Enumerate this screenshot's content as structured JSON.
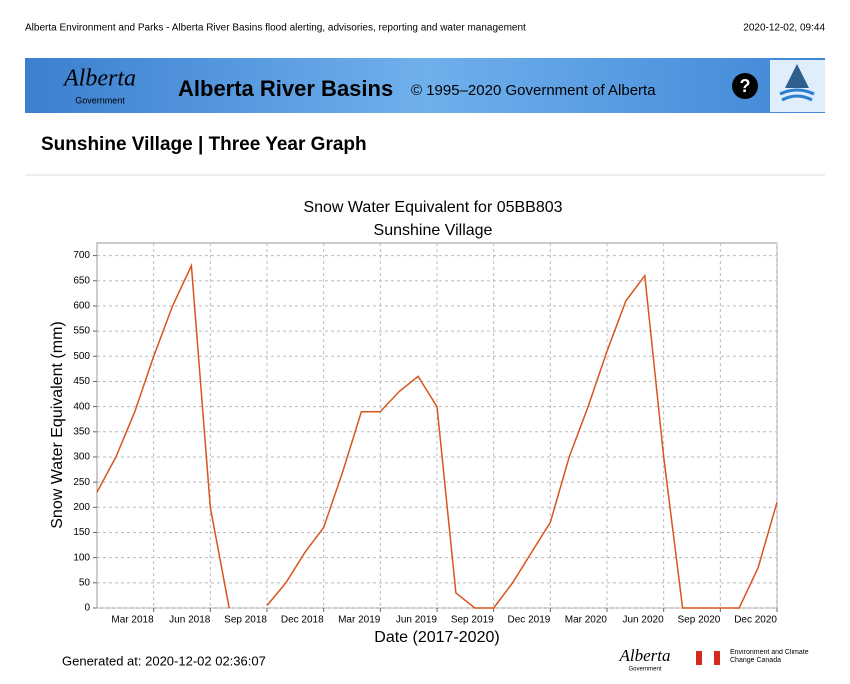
{
  "header": {
    "source": "Alberta Environment and Parks - Alberta River Basins flood alerting, advisories, reporting and water management",
    "timestamp": "2020-12-02, 09:44"
  },
  "banner": {
    "logo": "Alberta",
    "logo_sub": "Government",
    "title": "Alberta River Basins",
    "copyright": "© 1995–2020 Government of Alberta",
    "help": "?"
  },
  "page_title": "Sunshine Village | Three Year Graph",
  "chart_data": {
    "type": "line",
    "title": "Snow Water Equivalent for 05BB803",
    "subtitle": "Sunshine Village",
    "x_label": "Date (2017-2020)",
    "y_label": "Snow Water Equivalent (mm)",
    "x": [
      "2017-12",
      "2018-01",
      "2018-02",
      "2018-03",
      "2018-04",
      "2018-05",
      "2018-06",
      "2018-07",
      "2018-08",
      "2018-09",
      "2018-10",
      "2018-11",
      "2018-12",
      "2019-01",
      "2019-02",
      "2019-03",
      "2019-04",
      "2019-05",
      "2019-06",
      "2019-07",
      "2019-08",
      "2019-09",
      "2019-10",
      "2019-11",
      "2019-12",
      "2020-01",
      "2020-02",
      "2020-03",
      "2020-04",
      "2020-05",
      "2020-06",
      "2020-07",
      "2020-08",
      "2020-09",
      "2020-10",
      "2020-11",
      "2020-12"
    ],
    "series": [
      {
        "name": "Snow Water Equivalent",
        "color": "#d9541e",
        "values": [
          230,
          300,
          390,
          500,
          600,
          680,
          200,
          0,
          null,
          5,
          50,
          110,
          160,
          270,
          390,
          390,
          430,
          460,
          400,
          30,
          0,
          0,
          50,
          110,
          170,
          300,
          400,
          510,
          610,
          660,
          300,
          0,
          0,
          0,
          0,
          80,
          210
        ]
      }
    ],
    "xlim": [
      "2017-12",
      "2020-12"
    ],
    "xticks": [
      {
        "value": "2018-03",
        "label": "Mar 2018"
      },
      {
        "value": "2018-06",
        "label": "Jun 2018"
      },
      {
        "value": "2018-09",
        "label": "Sep 2018"
      },
      {
        "value": "2018-12",
        "label": "Dec 2018"
      },
      {
        "value": "2019-03",
        "label": "Mar 2019"
      },
      {
        "value": "2019-06",
        "label": "Jun 2019"
      },
      {
        "value": "2019-09",
        "label": "Sep 2019"
      },
      {
        "value": "2019-12",
        "label": "Dec 2019"
      },
      {
        "value": "2020-03",
        "label": "Mar 2020"
      },
      {
        "value": "2020-06",
        "label": "Jun 2020"
      },
      {
        "value": "2020-09",
        "label": "Sep 2020"
      },
      {
        "value": "2020-12",
        "label": "Dec 2020"
      }
    ],
    "ylim": [
      0,
      725
    ],
    "yticks": [
      0,
      50,
      100,
      150,
      200,
      250,
      300,
      350,
      400,
      450,
      500,
      550,
      600,
      650,
      700
    ],
    "grid": true
  },
  "footer": {
    "generated": "Generated at: 2020-12-02 02:36:07",
    "logo": "Alberta",
    "logo_sub": "Government",
    "eccc": "Environment and Climate Change Canada"
  }
}
